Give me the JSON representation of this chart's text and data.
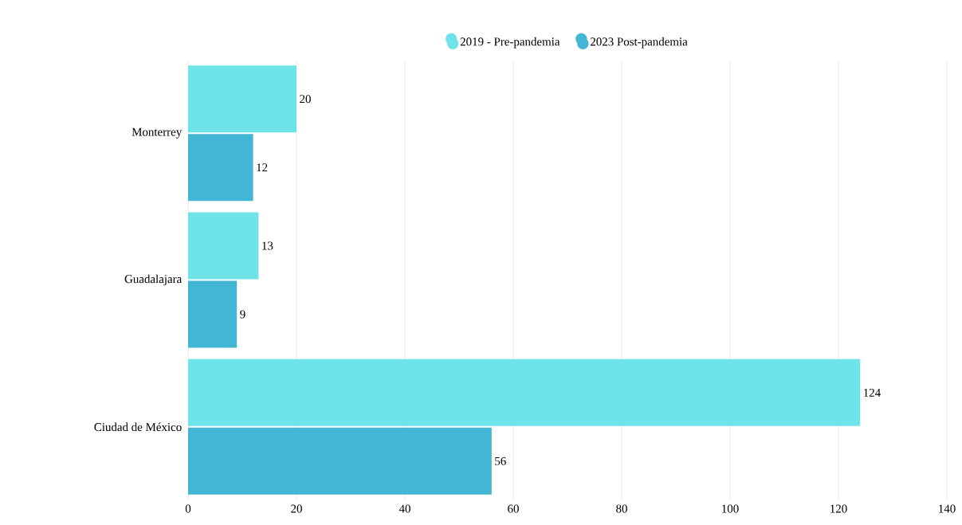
{
  "chart_data": {
    "type": "bar",
    "orientation": "horizontal",
    "categories": [
      "Monterrey",
      "Guadalajara",
      "Ciudad de México"
    ],
    "series": [
      {
        "name": "2019 - Pre-pandemia",
        "color": "#6ee4e8",
        "values": [
          20,
          13,
          124
        ]
      },
      {
        "name": "2023 Post-pandemia",
        "color": "#43b6d5",
        "values": [
          12,
          9,
          56
        ]
      }
    ],
    "xlim": [
      0,
      140
    ],
    "xticks": [
      0,
      20,
      40,
      60,
      80,
      100,
      120,
      140
    ],
    "grid": "x",
    "legend": "top",
    "data_labels": true,
    "marker": "circle"
  }
}
